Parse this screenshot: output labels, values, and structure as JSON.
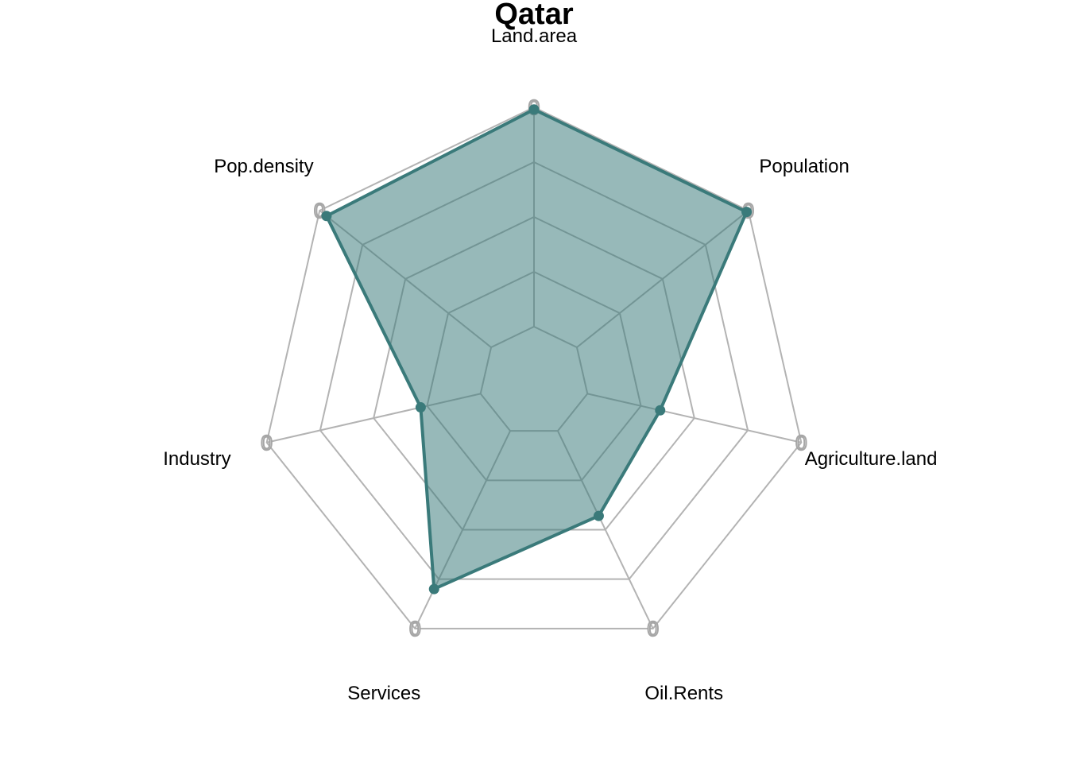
{
  "chart_data": {
    "type": "radar",
    "title": "Qatar",
    "axes": [
      "Land.area",
      "Population",
      "Agriculture.land",
      "Oil.Rents",
      "Services",
      "Industry",
      "Pop.density"
    ],
    "range": [
      0,
      1
    ],
    "grid_levels": 5,
    "axis_max_label": "0",
    "grid": true,
    "legend": "none",
    "series": [
      {
        "values": [
          0.99,
          0.99,
          0.34,
          0.43,
          0.8,
          0.28,
          0.96
        ],
        "color": "#3A7A7A",
        "fill_color": "#3A7A7A",
        "fill_opacity": 0.53
      }
    ]
  }
}
